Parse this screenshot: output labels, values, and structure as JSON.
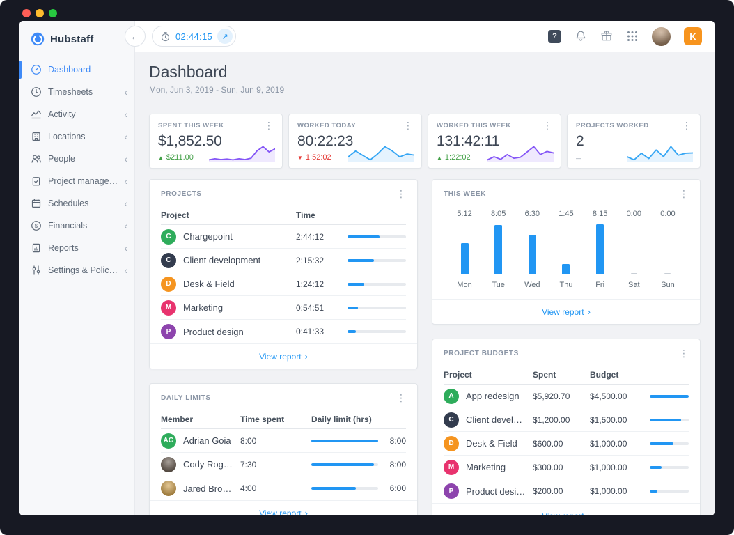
{
  "icons": {
    "kebab": "⋮",
    "chevron_left": "‹",
    "chevron_right": "›",
    "back_arrow": "←",
    "open_arrow": "↗",
    "help": "?",
    "dollar": "$"
  },
  "sidebar": {
    "brand": "Hubstaff",
    "items": [
      {
        "label": "Dashboard"
      },
      {
        "label": "Timesheets"
      },
      {
        "label": "Activity"
      },
      {
        "label": "Locations"
      },
      {
        "label": "People"
      },
      {
        "label": "Project management"
      },
      {
        "label": "Schedules"
      },
      {
        "label": "Financials"
      },
      {
        "label": "Reports"
      },
      {
        "label": "Settings & Policies"
      }
    ]
  },
  "topbar": {
    "timer_value": "02:44:15",
    "user_initial": "K"
  },
  "page": {
    "title": "Dashboard",
    "date_range": "Mon, Jun 3, 2019 - Sun, Jun 9, 2019",
    "view_report_label": "View report"
  },
  "stats": {
    "cards": [
      {
        "label": "SPENT THIS WEEK",
        "value": "$1,852.50",
        "delta_icon": "▲",
        "delta": "$211.00",
        "direction": "up",
        "spark_color": "#8455f6",
        "spark": [
          3,
          3.4,
          3.1,
          3.3,
          3,
          3.4,
          3.1,
          3.6,
          6.4,
          8,
          6,
          7.2
        ]
      },
      {
        "label": "WORKED TODAY",
        "value": "80:22:23",
        "delta_icon": "▼",
        "delta": "1:52:02",
        "direction": "down",
        "spark_color": "#36a6f4",
        "spark": [
          4,
          6,
          4.5,
          3,
          5,
          7.5,
          6,
          4,
          5,
          4.6
        ]
      },
      {
        "label": "WORKED THIS WEEK",
        "value": "131:42:11",
        "delta_icon": "▲",
        "delta": "1:22:02",
        "direction": "up",
        "spark_color": "#8455f6",
        "spark": [
          3,
          4.2,
          3.2,
          5,
          3.6,
          4,
          6,
          8,
          5,
          6.2,
          5.6
        ]
      },
      {
        "label": "PROJECTS WORKED",
        "value": "2",
        "delta_icon": "—",
        "delta": "",
        "direction": "flat",
        "spark_color": "#36a6f4",
        "spark": [
          4,
          3,
          5,
          3.4,
          6,
          4,
          7,
          4.4,
          5,
          5.1
        ]
      }
    ]
  },
  "projects": {
    "title": "PROJECTS",
    "columns": {
      "project": "Project",
      "time": "Time"
    },
    "rows": [
      {
        "name": "Chargepoint",
        "initial": "C",
        "color": "#2eac5b",
        "time": "2:44:12",
        "pct": 55
      },
      {
        "name": "Client development",
        "initial": "C",
        "color": "#333c4e",
        "time": "2:15:32",
        "pct": 45
      },
      {
        "name": "Desk & Field",
        "initial": "D",
        "color": "#f5941f",
        "time": "1:24:12",
        "pct": 28
      },
      {
        "name": "Marketing",
        "initial": "M",
        "color": "#e8336e",
        "time": "0:54:51",
        "pct": 18
      },
      {
        "name": "Product design",
        "initial": "P",
        "color": "#8d44ad",
        "time": "0:41:33",
        "pct": 14
      }
    ]
  },
  "this_week": {
    "title": "THIS WEEK",
    "chart": {
      "type": "bar",
      "categories": [
        "Mon",
        "Tue",
        "Wed",
        "Thu",
        "Fri",
        "Sat",
        "Sun"
      ],
      "labels": [
        "5:12",
        "8:05",
        "6:30",
        "1:45",
        "8:15",
        "0:00",
        "0:00"
      ],
      "values_pct": [
        63,
        98,
        79,
        21,
        100,
        0,
        0
      ],
      "bar_color": "#2196f3"
    }
  },
  "daily_limits": {
    "title": "DAILY LIMITS",
    "columns": {
      "member": "Member",
      "time_spent": "Time spent",
      "daily_limit": "Daily limit (hrs)"
    },
    "rows": [
      {
        "name": "Adrian Goia",
        "avatar_text": "AG",
        "color": "#2eac5b",
        "time_spent": "8:00",
        "limit": "8:00",
        "pct": 100
      },
      {
        "name": "Cody Rogers",
        "avatar_text": "",
        "color": "#6b5d52",
        "photo": "true",
        "time_spent": "7:30",
        "limit": "8:00",
        "pct": 94
      },
      {
        "name": "Jared Brown",
        "avatar_text": "",
        "color": "#d2a24c",
        "photo": "true",
        "time_spent": "4:00",
        "limit": "6:00",
        "pct": 67
      }
    ]
  },
  "project_budgets": {
    "title": "PROJECT BUDGETS",
    "columns": {
      "project": "Project",
      "spent": "Spent",
      "budget": "Budget"
    },
    "rows": [
      {
        "name": "App redesign",
        "initial": "A",
        "color": "#2eac5b",
        "spent": "$5,920.70",
        "budget": "$4,500.00",
        "pct": 100
      },
      {
        "name": "Client development",
        "initial": "C",
        "color": "#333c4e",
        "spent": "$1,200.00",
        "budget": "$1,500.00",
        "pct": 80
      },
      {
        "name": "Desk & Field",
        "initial": "D",
        "color": "#f5941f",
        "spent": "$600.00",
        "budget": "$1,000.00",
        "pct": 60
      },
      {
        "name": "Marketing",
        "initial": "M",
        "color": "#e8336e",
        "spent": "$300.00",
        "budget": "$1,000.00",
        "pct": 30
      },
      {
        "name": "Product design",
        "initial": "P",
        "color": "#8d44ad",
        "spent": "$200.00",
        "budget": "$1,000.00",
        "pct": 20
      }
    ]
  }
}
